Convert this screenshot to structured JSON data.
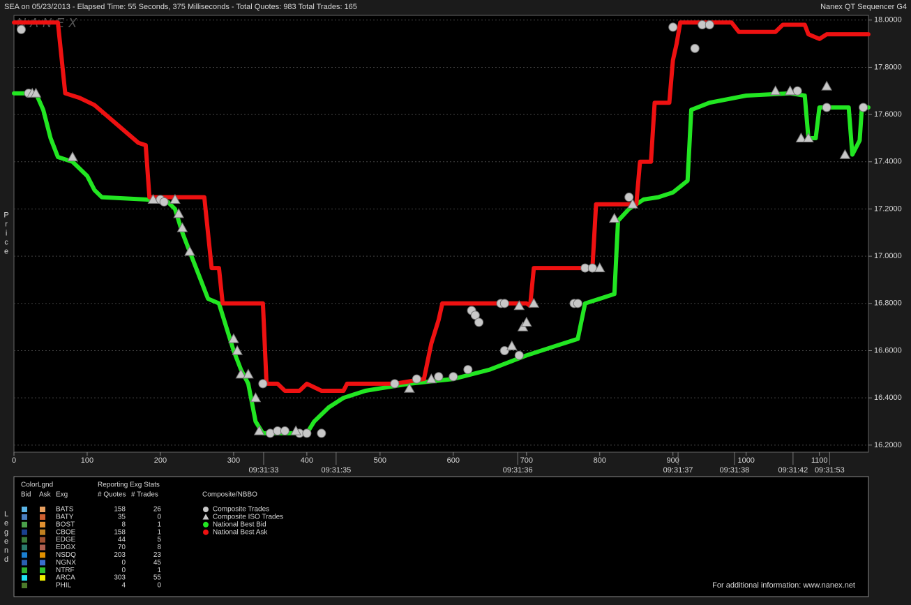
{
  "header": {
    "title": "SEA on 05/23/2013  -  Elapsed Time: 55 Seconds, 375 Milliseconds  -  Total Quotes: 983  Total Trades: 165",
    "product": "Nanex QT Sequencer G4",
    "watermark": "NANEX"
  },
  "chart_data": {
    "type": "line",
    "y_label": "Price",
    "xlim": [
      0,
      1167
    ],
    "ylim": [
      16.17,
      18.02
    ],
    "grid": true,
    "xticks": [
      0,
      100,
      200,
      300,
      400,
      500,
      600,
      700,
      800,
      900,
      1000,
      1100
    ],
    "time_ticks": [
      {
        "value": 341,
        "label": "09:31:33"
      },
      {
        "value": 440,
        "label": "09:31:35"
      },
      {
        "value": 688,
        "label": "09:31:36"
      },
      {
        "value": 907,
        "label": "09:31:37"
      },
      {
        "value": 984,
        "label": "09:31:38"
      },
      {
        "value": 1064,
        "label": "09:31:42"
      },
      {
        "value": 1114,
        "label": "09:31:53"
      }
    ],
    "yticks": [
      {
        "value": 16.2,
        "label": "16.2000"
      },
      {
        "value": 16.4,
        "label": "16.4000"
      },
      {
        "value": 16.6,
        "label": "16.6000"
      },
      {
        "value": 16.8,
        "label": "16.8000"
      },
      {
        "value": 17,
        "label": "17.0000"
      },
      {
        "value": 17.2,
        "label": "17.2000"
      },
      {
        "value": 17.4,
        "label": "17.4000"
      },
      {
        "value": 17.6,
        "label": "17.6000"
      },
      {
        "value": 17.8,
        "label": "17.8000"
      },
      {
        "value": 18,
        "label": "18.0000"
      }
    ],
    "series": [
      {
        "name": "National Best Bid",
        "color": "#22e622",
        "kind": "line",
        "x": [
          0,
          30,
          40,
          50,
          60,
          80,
          100,
          110,
          120,
          180,
          210,
          220,
          230,
          240,
          255,
          265,
          280,
          290,
          300,
          310,
          320,
          330,
          340,
          400,
          410,
          430,
          450,
          480,
          500,
          540,
          600,
          650,
          700,
          740,
          770,
          780,
          800,
          820,
          825,
          840,
          860,
          880,
          900,
          920,
          925,
          950,
          1000,
          1060,
          1080,
          1085,
          1095,
          1100,
          1140,
          1145,
          1155,
          1158,
          1167
        ],
        "values": [
          17.69,
          17.69,
          17.62,
          17.5,
          17.42,
          17.4,
          17.34,
          17.28,
          17.25,
          17.24,
          17.23,
          17.2,
          17.1,
          17.02,
          16.9,
          16.82,
          16.8,
          16.7,
          16.6,
          16.52,
          16.46,
          16.3,
          16.25,
          16.25,
          16.3,
          16.36,
          16.4,
          16.43,
          16.44,
          16.46,
          16.48,
          16.52,
          16.58,
          16.62,
          16.65,
          16.8,
          16.82,
          16.84,
          17.15,
          17.2,
          17.24,
          17.25,
          17.27,
          17.32,
          17.62,
          17.65,
          17.68,
          17.69,
          17.68,
          17.5,
          17.5,
          17.63,
          17.63,
          17.43,
          17.49,
          17.63,
          17.63
        ]
      },
      {
        "name": "National Best Ask",
        "color": "#ee1111",
        "kind": "line",
        "x": [
          0,
          60,
          70,
          90,
          110,
          140,
          170,
          180,
          185,
          260,
          270,
          280,
          285,
          340,
          345,
          360,
          370,
          390,
          400,
          420,
          450,
          455,
          520,
          560,
          570,
          580,
          585,
          700,
          705,
          710,
          790,
          795,
          850,
          855,
          870,
          875,
          895,
          900,
          905,
          910,
          980,
          990,
          1040,
          1050,
          1080,
          1085,
          1100,
          1110,
          1167
        ],
        "values": [
          17.99,
          17.99,
          17.69,
          17.67,
          17.64,
          17.56,
          17.48,
          17.47,
          17.25,
          17.25,
          16.95,
          16.95,
          16.8,
          16.8,
          16.46,
          16.46,
          16.43,
          16.43,
          16.46,
          16.43,
          16.43,
          16.46,
          16.46,
          16.48,
          16.63,
          16.73,
          16.8,
          16.8,
          16.79,
          16.95,
          16.95,
          17.22,
          17.22,
          17.4,
          17.4,
          17.65,
          17.65,
          17.83,
          17.9,
          17.99,
          17.99,
          17.95,
          17.95,
          17.98,
          17.98,
          17.94,
          17.92,
          17.94,
          17.94
        ]
      },
      {
        "name": "Composite Trades",
        "color": "#c8c8c8",
        "kind": "circle",
        "x": [
          10,
          20,
          200,
          205,
          340,
          350,
          360,
          370,
          390,
          400,
          420,
          520,
          550,
          580,
          600,
          620,
          625,
          630,
          635,
          665,
          670,
          670,
          690,
          765,
          770,
          780,
          790,
          840,
          900,
          930,
          940,
          950,
          1070,
          1110,
          1160
        ],
        "values": [
          17.96,
          17.69,
          17.24,
          17.23,
          16.46,
          16.25,
          16.26,
          16.26,
          16.25,
          16.25,
          16.25,
          16.46,
          16.48,
          16.49,
          16.49,
          16.52,
          16.77,
          16.75,
          16.72,
          16.8,
          16.8,
          16.6,
          16.58,
          16.8,
          16.8,
          16.95,
          16.95,
          17.25,
          17.97,
          17.88,
          17.98,
          17.98,
          17.7,
          17.63,
          17.63
        ]
      },
      {
        "name": "Composite ISO Trades",
        "color": "#c8c8c8",
        "kind": "triangle",
        "x": [
          25,
          30,
          80,
          190,
          220,
          225,
          230,
          240,
          300,
          305,
          310,
          320,
          330,
          335,
          385,
          540,
          570,
          680,
          690,
          695,
          700,
          710,
          800,
          820,
          845,
          1040,
          1060,
          1075,
          1085,
          1110,
          1135
        ],
        "values": [
          17.69,
          17.69,
          17.42,
          17.24,
          17.24,
          17.18,
          17.12,
          17.02,
          16.65,
          16.6,
          16.5,
          16.5,
          16.4,
          16.26,
          16.26,
          16.44,
          16.48,
          16.62,
          16.79,
          16.7,
          16.72,
          16.8,
          16.95,
          17.16,
          17.22,
          17.7,
          17.7,
          17.5,
          17.5,
          17.72,
          17.43
        ]
      }
    ]
  },
  "legend": {
    "title": "Legend",
    "color_legend": "ColorLgnd",
    "bid": "Bid",
    "ask": "Ask",
    "exg": "Exg",
    "stats_title": "Reporting Exg Stats",
    "quotes": "# Quotes",
    "trades": "# Trades",
    "composite_title": "Composite/NBBO",
    "rows": [
      {
        "exg": "BATS",
        "quotes": "158",
        "trades": "26",
        "bid_color": "#5ab4e6",
        "ask_color": "#e8a060"
      },
      {
        "exg": "BATY",
        "quotes": "35",
        "trades": "0",
        "bid_color": "#4a7fc0",
        "ask_color": "#d06030"
      },
      {
        "exg": "BOST",
        "quotes": "8",
        "trades": "1",
        "bid_color": "#4aa04a",
        "ask_color": "#e09030"
      },
      {
        "exg": "CBOE",
        "quotes": "158",
        "trades": "1",
        "bid_color": "#1a3f8f",
        "ask_color": "#c08020"
      },
      {
        "exg": "EDGE",
        "quotes": "44",
        "trades": "5",
        "bid_color": "#3a7a3a",
        "ask_color": "#a05030"
      },
      {
        "exg": "EDGX",
        "quotes": "70",
        "trades": "8",
        "bid_color": "#2a7a6a",
        "ask_color": "#b06050"
      },
      {
        "exg": "NSDQ",
        "quotes": "203",
        "trades": "23",
        "bid_color": "#1a7fd0",
        "ask_color": "#e09000"
      },
      {
        "exg": "NGNX",
        "quotes": "0",
        "trades": "45",
        "bid_color": "#2a5fb0",
        "ask_color": "#3a6fd0"
      },
      {
        "exg": "NTRF",
        "quotes": "0",
        "trades": "1",
        "bid_color": "#30b030",
        "ask_color": "#30c030"
      },
      {
        "exg": "ARCA",
        "quotes": "303",
        "trades": "55",
        "bid_color": "#20e0f0",
        "ask_color": "#f0f000"
      },
      {
        "exg": "PHIL",
        "quotes": "4",
        "trades": "0",
        "bid_color": "#4a7a2a"
      }
    ]
  },
  "footer": "For additional information: www.nanex.net"
}
